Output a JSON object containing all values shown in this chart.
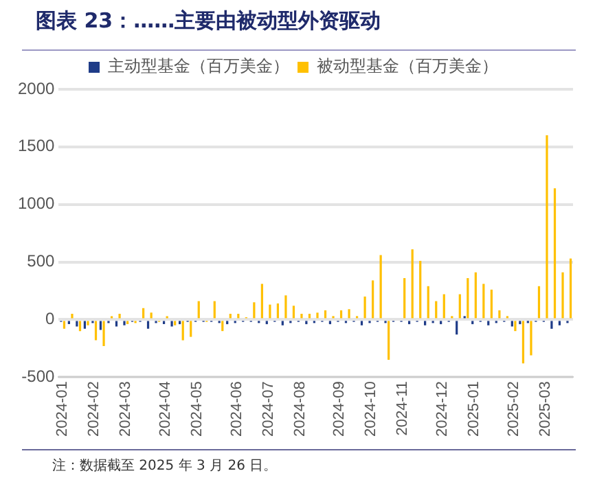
{
  "chart_data": {
    "type": "bar",
    "title": "图表 23：……主要由被动型外资驱动",
    "categories": [
      "2024-01",
      null,
      null,
      null,
      "2024-02",
      null,
      null,
      null,
      "2024-03",
      null,
      null,
      null,
      null,
      "2024-04",
      null,
      null,
      null,
      "2024-05",
      null,
      null,
      null,
      null,
      "2024-06",
      null,
      null,
      null,
      "2024-07",
      null,
      null,
      null,
      "2024-08",
      null,
      null,
      null,
      null,
      "2024-09",
      null,
      null,
      null,
      "2024-10",
      null,
      null,
      null,
      "2024-11",
      null,
      null,
      null,
      null,
      "2024-12",
      null,
      null,
      null,
      "2025-01",
      null,
      null,
      null,
      null,
      "2025-02",
      null,
      null,
      null,
      "2025-03",
      null,
      null,
      null
    ],
    "series": [
      {
        "name": "主动型基金（百万美金）",
        "color": "#1f3c88",
        "values": [
          -20,
          -40,
          -60,
          -80,
          -30,
          -90,
          -30,
          -60,
          -50,
          -20,
          -20,
          -80,
          -30,
          -40,
          -60,
          -40,
          -20,
          -20,
          -20,
          -20,
          -30,
          -40,
          -30,
          -20,
          -20,
          -30,
          -40,
          -20,
          -50,
          -30,
          -20,
          -40,
          -30,
          -20,
          -40,
          -20,
          -30,
          -20,
          -50,
          -30,
          -20,
          -30,
          -20,
          -20,
          -40,
          -20,
          -50,
          -30,
          -40,
          -20,
          -130,
          30,
          -40,
          -20,
          -50,
          -30,
          -20,
          -60,
          -40,
          -30,
          -20,
          -20,
          -80,
          -50,
          -30
        ]
      },
      {
        "name": "被动型基金（百万美金）",
        "color": "#ffc000",
        "values": [
          -80,
          50,
          -100,
          -50,
          -180,
          -230,
          30,
          50,
          -40,
          -30,
          100,
          60,
          -20,
          30,
          -50,
          -180,
          -150,
          160,
          -20,
          160,
          -100,
          50,
          50,
          20,
          150,
          310,
          130,
          140,
          210,
          120,
          50,
          50,
          60,
          80,
          30,
          80,
          90,
          30,
          200,
          340,
          560,
          -350,
          null,
          360,
          610,
          510,
          290,
          160,
          220,
          30,
          220,
          360,
          410,
          310,
          260,
          80,
          30,
          -100,
          -380,
          -310,
          290,
          1600,
          1140,
          410,
          530
        ]
      }
    ],
    "ylim": [
      -500,
      2000
    ],
    "yticks": [
      -500,
      0,
      500,
      1000,
      1500,
      2000
    ],
    "grid": "y",
    "legend": "top",
    "annotations": [
      "注：数据截至 2025 年 3 月 26 日。"
    ]
  }
}
